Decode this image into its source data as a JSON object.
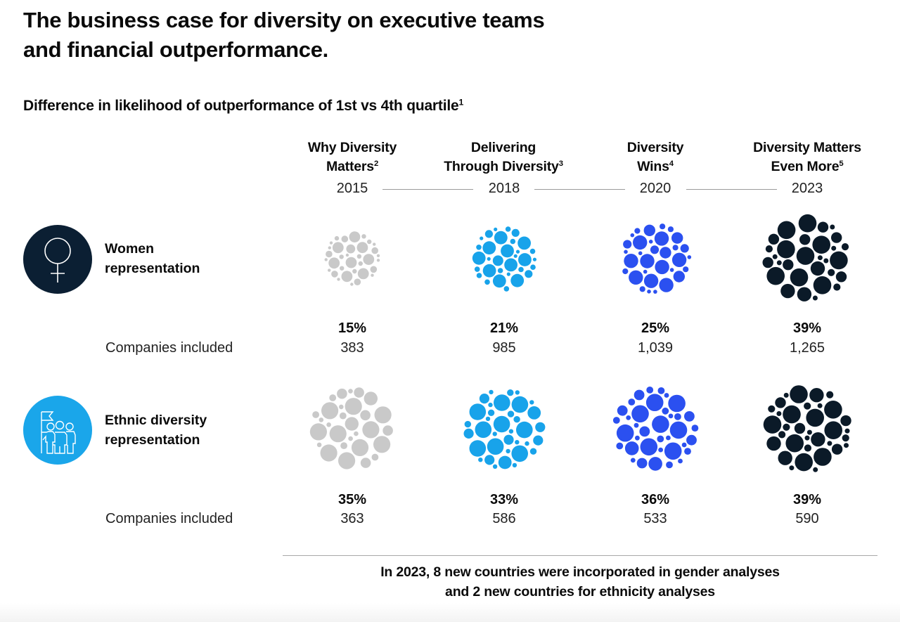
{
  "title_line1": "The business case for diversity on executive teams",
  "title_line2": "and financial outperformance.",
  "subtitle": "Difference in likelihood of outperformance of 1st vs 4th quartile",
  "subtitle_footnote": "1",
  "columns": [
    {
      "line1": "Why Diversity",
      "line2": "Matters",
      "footnote": "2",
      "year": "2015"
    },
    {
      "line1": "Delivering",
      "line2": "Through Diversity",
      "footnote": "3",
      "year": "2018"
    },
    {
      "line1": "Diversity",
      "line2": "Wins",
      "footnote": "4",
      "year": "2020"
    },
    {
      "line1": "Diversity Matters",
      "line2": "Even More",
      "footnote": "5",
      "year": "2023"
    }
  ],
  "rows": [
    {
      "label_line1": "Women",
      "label_line2": "representation",
      "icon": "female-symbol-icon",
      "icon_bg": "#0b1f33",
      "companies_label": "Companies included",
      "percentages": [
        "15%",
        "21%",
        "25%",
        "39%"
      ],
      "companies": [
        "383",
        "985",
        "1,039",
        "1,265"
      ]
    },
    {
      "label_line1": "Ethnic diversity",
      "label_line2": "representation",
      "icon": "group-with-flag-icon",
      "icon_bg": "#1aa6ea",
      "companies_label": "Companies included",
      "percentages": [
        "35%",
        "33%",
        "36%",
        "39%"
      ],
      "companies": [
        "363",
        "586",
        "533",
        "590"
      ]
    }
  ],
  "colors": {
    "2015": "#c9c9c9",
    "2018": "#18a3ea",
    "2020": "#2b50f0",
    "2023": "#0b1a28"
  },
  "footer_note_line1": "In 2023, 8 new countries were incorporated in gender analyses",
  "footer_note_line2": "and 2 new countries for ethnicity analyses",
  "chart_data": {
    "type": "table",
    "title": "The business case for diversity on executive teams and financial outperformance.",
    "subtitle": "Difference in likelihood of outperformance of 1st vs 4th quartile",
    "categories": [
      "2015",
      "2018",
      "2020",
      "2023"
    ],
    "category_reports": [
      "Why Diversity Matters",
      "Delivering Through Diversity",
      "Diversity Wins",
      "Diversity Matters Even More"
    ],
    "series": [
      {
        "name": "Women representation",
        "values": [
          15,
          21,
          25,
          39
        ],
        "unit": "%",
        "companies_included": [
          383,
          985,
          1039,
          1265
        ]
      },
      {
        "name": "Ethnic diversity representation",
        "values": [
          35,
          33,
          36,
          39
        ],
        "unit": "%",
        "companies_included": [
          363,
          586,
          533,
          590
        ]
      }
    ],
    "note": "In 2023, 8 new countries were incorporated in gender analyses and 2 new countries for ethnicity analyses"
  }
}
